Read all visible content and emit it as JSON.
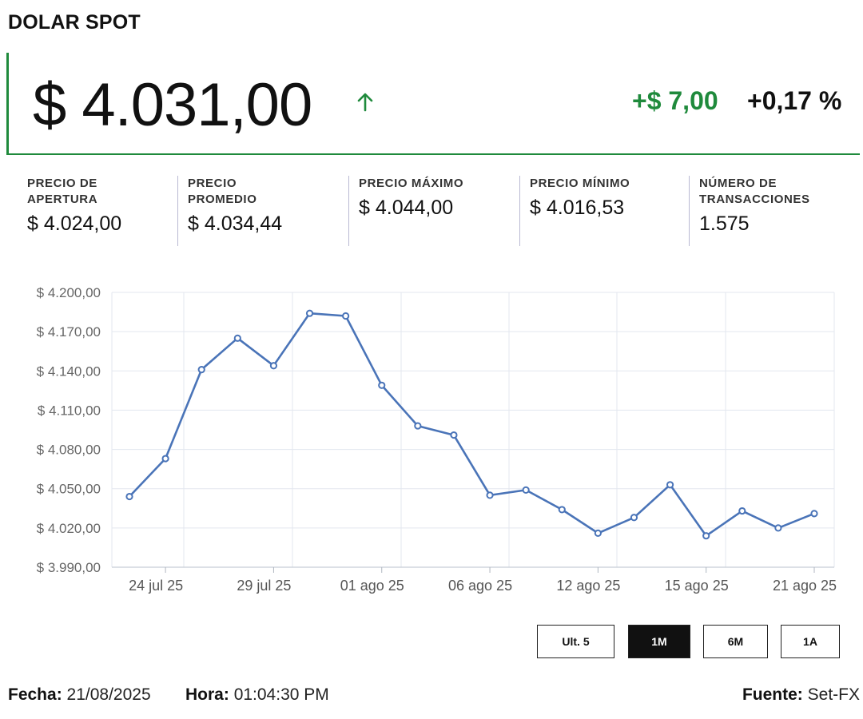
{
  "header": {
    "title": "DOLAR SPOT"
  },
  "quote": {
    "price": "$ 4.031,00",
    "direction_icon": "arrow-up-icon",
    "change_abs": "+$ 7,00",
    "change_pct": "+0,17 %",
    "accent_color": "#1f8a3c"
  },
  "stats": [
    {
      "label_line1": "PRECIO DE",
      "label_line2": "APERTURA",
      "value": "$ 4.024,00"
    },
    {
      "label_line1": "PRECIO",
      "label_line2": "PROMEDIO",
      "value": "$ 4.034,44"
    },
    {
      "label_line1": "PRECIO MÁXIMO",
      "label_line2": "",
      "value": "$ 4.044,00"
    },
    {
      "label_line1": "PRECIO MÍNIMO",
      "label_line2": "",
      "value": "$ 4.016,53"
    },
    {
      "label_line1": "NÚMERO DE",
      "label_line2": "TRANSACCIONES",
      "value": "1.575"
    }
  ],
  "chart_data": {
    "type": "line",
    "title": "",
    "xlabel": "",
    "ylabel": "",
    "ylim": [
      3990,
      4200
    ],
    "yticks": [
      3990,
      4020,
      4050,
      4080,
      4110,
      4140,
      4170,
      4200
    ],
    "ytick_labels": [
      "$ 3.990,00",
      "$ 4.020,00",
      "$ 4.050,00",
      "$ 4.080,00",
      "$ 4.110,00",
      "$ 4.140,00",
      "$ 4.170,00",
      "$ 4.200,00"
    ],
    "x_count": 20,
    "xticks": [
      {
        "index": 1,
        "label": "24 jul 25"
      },
      {
        "index": 4,
        "label": "29 jul 25"
      },
      {
        "index": 7,
        "label": "01 ago 25"
      },
      {
        "index": 10,
        "label": "06 ago 25"
      },
      {
        "index": 13,
        "label": "12 ago 25"
      },
      {
        "index": 16,
        "label": "15 ago 25"
      },
      {
        "index": 19,
        "label": "21 ago 25"
      }
    ],
    "grid": true,
    "series": [
      {
        "name": "Dolar spot",
        "color": "#4a74b8",
        "values": [
          4044,
          4073,
          4141,
          4165,
          4144,
          4184,
          4182,
          4129,
          4098,
          4091,
          4045,
          4049,
          4034,
          4016,
          4028,
          4053,
          4014,
          4033,
          4020,
          4031
        ]
      }
    ]
  },
  "range_buttons": [
    {
      "label": "Ult. 5",
      "active": false
    },
    {
      "label": "1M",
      "active": true
    },
    {
      "label": "6M",
      "active": false
    },
    {
      "label": "1A",
      "active": false
    }
  ],
  "footer": {
    "fecha_label": "Fecha:",
    "fecha_value": "21/08/2025",
    "hora_label": "Hora:",
    "hora_value": "01:04:30 PM",
    "fuente_label": "Fuente:",
    "fuente_value": "Set-FX"
  }
}
